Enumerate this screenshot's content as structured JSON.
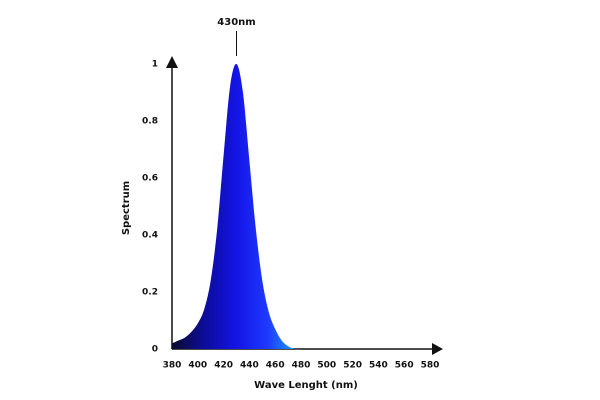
{
  "chart_data": {
    "type": "area",
    "x": [
      380,
      385,
      390,
      395,
      400,
      405,
      410,
      415,
      420,
      425,
      430,
      435,
      440,
      445,
      450,
      455,
      460,
      465,
      470,
      475,
      480
    ],
    "values": [
      0.02,
      0.03,
      0.04,
      0.06,
      0.09,
      0.14,
      0.24,
      0.42,
      0.68,
      0.92,
      1,
      0.9,
      0.66,
      0.42,
      0.24,
      0.13,
      0.07,
      0.03,
      0.01,
      0,
      0
    ],
    "gradient": [
      "#0b0b2e",
      "#0c0c9a",
      "#1414e6",
      "#1e3cff",
      "#19b4ff"
    ],
    "xlim": [
      380,
      580
    ],
    "xticks": [
      380,
      400,
      420,
      440,
      460,
      480,
      500,
      520,
      540,
      560,
      580
    ],
    "ylim": [
      0,
      1
    ],
    "yticks": [
      0,
      0.2,
      0.4,
      0.6,
      0.8,
      1
    ],
    "xlabel": "Wave Lenght (nm)",
    "ylabel": "Spectrum",
    "annotation": {
      "text": "430nm",
      "x": 430
    }
  }
}
